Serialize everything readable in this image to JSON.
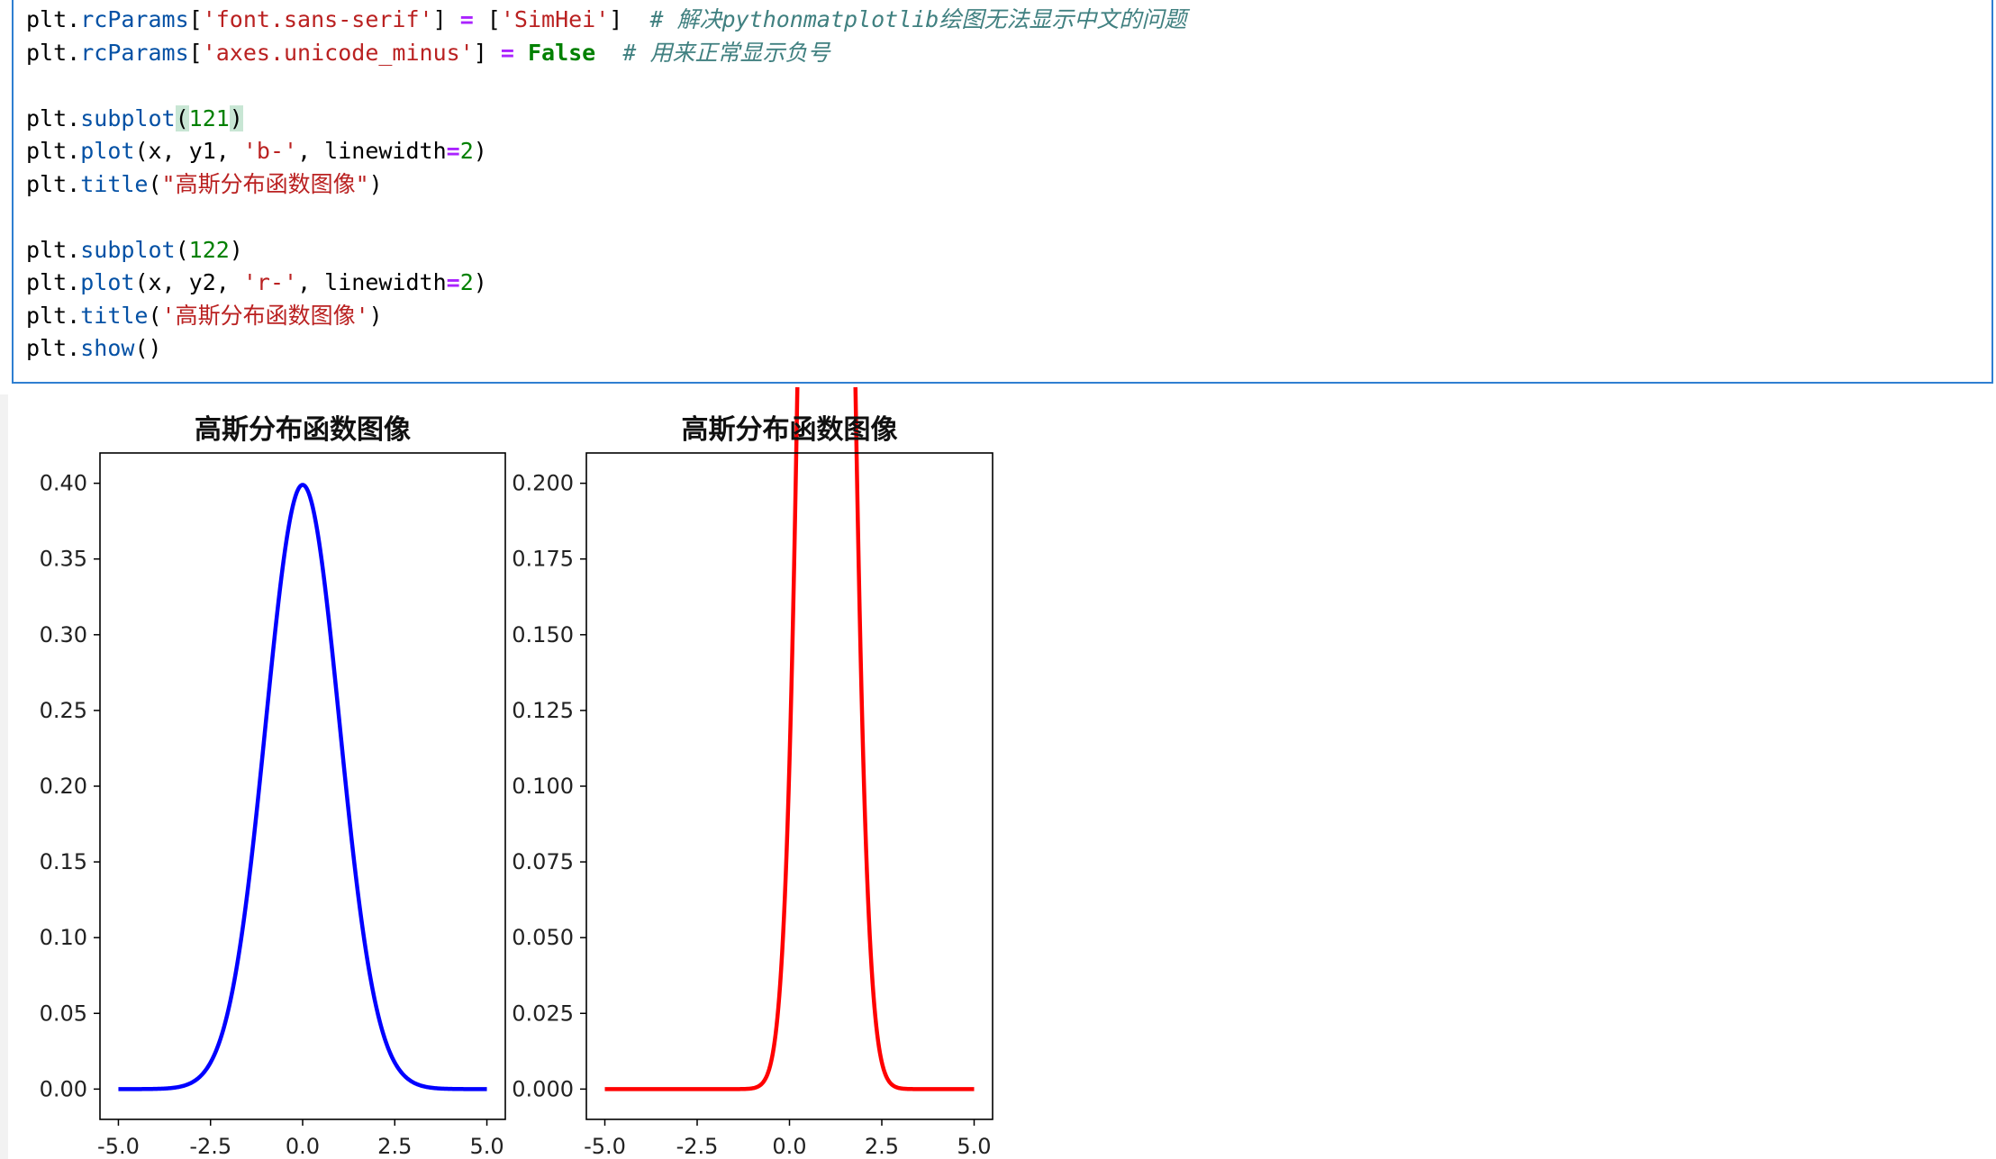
{
  "code_lines": [
    [
      [
        "nm",
        "plt."
      ],
      [
        "attr",
        "rcParams"
      ],
      [
        "nm",
        "["
      ],
      [
        "str",
        "'font.sans-serif'"
      ],
      [
        "nm",
        "] "
      ],
      [
        "op",
        "="
      ],
      [
        "nm",
        " ["
      ],
      [
        "str",
        "'SimHei'"
      ],
      [
        "nm",
        "]  "
      ],
      [
        "cm",
        "# 解决pythonmatplotlib绘图无法显示中文的问题"
      ]
    ],
    [
      [
        "nm",
        "plt."
      ],
      [
        "attr",
        "rcParams"
      ],
      [
        "nm",
        "["
      ],
      [
        "str",
        "'axes.unicode_minus'"
      ],
      [
        "nm",
        "] "
      ],
      [
        "op",
        "="
      ],
      [
        "nm",
        " "
      ],
      [
        "kw",
        "False"
      ],
      [
        "nm",
        "  "
      ],
      [
        "cm",
        "# 用来正常显示负号"
      ]
    ],
    [],
    [
      [
        "nm",
        "plt."
      ],
      [
        "attr",
        "subplot"
      ],
      [
        "hl",
        "("
      ],
      [
        "num",
        "121"
      ],
      [
        "hl",
        ")"
      ]
    ],
    [
      [
        "nm",
        "plt."
      ],
      [
        "attr",
        "plot"
      ],
      [
        "nm",
        "(x, y1, "
      ],
      [
        "str",
        "'b-'"
      ],
      [
        "nm",
        ", linewidth"
      ],
      [
        "op",
        "="
      ],
      [
        "num",
        "2"
      ],
      [
        "nm",
        ")"
      ]
    ],
    [
      [
        "nm",
        "plt."
      ],
      [
        "attr",
        "title"
      ],
      [
        "nm",
        "("
      ],
      [
        "str",
        "\"高斯分布函数图像\""
      ],
      [
        "nm",
        ")"
      ]
    ],
    [],
    [
      [
        "nm",
        "plt."
      ],
      [
        "attr",
        "subplot"
      ],
      [
        "nm",
        "("
      ],
      [
        "num",
        "122"
      ],
      [
        "nm",
        ")"
      ]
    ],
    [
      [
        "nm",
        "plt."
      ],
      [
        "attr",
        "plot"
      ],
      [
        "nm",
        "(x, y2, "
      ],
      [
        "str",
        "'r-'"
      ],
      [
        "nm",
        ", linewidth"
      ],
      [
        "op",
        "="
      ],
      [
        "num",
        "2"
      ],
      [
        "nm",
        ")"
      ]
    ],
    [
      [
        "nm",
        "plt."
      ],
      [
        "attr",
        "title"
      ],
      [
        "nm",
        "("
      ],
      [
        "str",
        "'高斯分布函数图像'"
      ],
      [
        "nm",
        ")"
      ]
    ],
    [
      [
        "nm",
        "plt."
      ],
      [
        "attr",
        "show"
      ],
      [
        "nm",
        "()"
      ]
    ]
  ],
  "chart_data": [
    {
      "type": "line",
      "title": "高斯分布函数图像",
      "series": [
        {
          "color": "#0000ff",
          "mu": 0,
          "sigma": 1
        }
      ],
      "x_range": [
        -5,
        5
      ],
      "xlim": [
        -5.5,
        5.5
      ],
      "ylim": [
        -0.02,
        0.42
      ],
      "xticks": [
        -5,
        -2.5,
        0,
        2.5,
        5
      ],
      "xtick_labels": [
        "-5.0",
        "-2.5",
        "0.0",
        "2.5",
        "5.0"
      ],
      "yticks": [
        0,
        0.05,
        0.1,
        0.15,
        0.2,
        0.25,
        0.3,
        0.35,
        0.4
      ],
      "ytick_labels": [
        "0.00",
        "0.05",
        "0.10",
        "0.15",
        "0.20",
        "0.25",
        "0.30",
        "0.35",
        "0.40"
      ]
    },
    {
      "type": "line",
      "title": "高斯分布函数图像",
      "series": [
        {
          "color": "#ff0000",
          "mu": 1,
          "sigma": 0.5
        }
      ],
      "x_range": [
        -5,
        5
      ],
      "xlim": [
        -5.5,
        5.5
      ],
      "ylim": [
        -0.01,
        0.21
      ],
      "xticks": [
        -5,
        -2.5,
        0,
        2.5,
        5
      ],
      "xtick_labels": [
        "-5.0",
        "-2.5",
        "0.0",
        "2.5",
        "5.0"
      ],
      "yticks": [
        0,
        0.025,
        0.05,
        0.075,
        0.1,
        0.125,
        0.15,
        0.175,
        0.2
      ],
      "ytick_labels": [
        "0.000",
        "0.025",
        "0.050",
        "0.075",
        "0.100",
        "0.125",
        "0.150",
        "0.175",
        "0.200"
      ]
    }
  ]
}
